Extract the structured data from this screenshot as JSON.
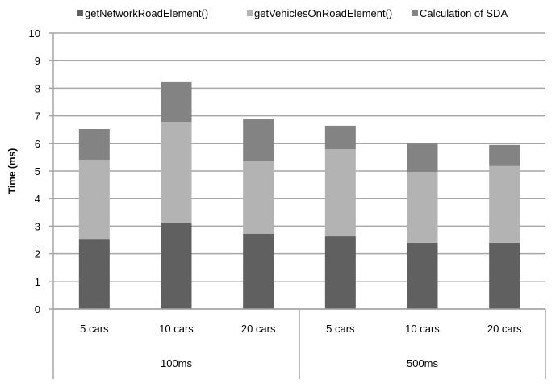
{
  "chart_data": {
    "type": "bar",
    "stacked": true,
    "title": "",
    "xlabel": "",
    "ylabel": "Time (ms)",
    "ylim": [
      0,
      10
    ],
    "yticks": [
      0,
      1,
      2,
      3,
      4,
      5,
      6,
      7,
      8,
      9,
      10
    ],
    "grid": true,
    "legend_position": "top",
    "categories": [
      "5 cars",
      "10 cars",
      "20 cars",
      "5 cars",
      "10 cars",
      "20 cars"
    ],
    "groups": [
      {
        "label": "100ms",
        "span": 3
      },
      {
        "label": "500ms",
        "span": 3
      }
    ],
    "series": [
      {
        "name": "getNetworkRoadElement()",
        "color": "#606060",
        "values": [
          2.54,
          3.1,
          2.72,
          2.63,
          2.4,
          2.4
        ]
      },
      {
        "name": "getVehiclesOnRoadElement()",
        "color": "#b3b3b3",
        "values": [
          2.87,
          3.68,
          2.63,
          3.16,
          2.57,
          2.78
        ]
      },
      {
        "name": "Calculation of SDA",
        "color": "#838383",
        "values": [
          1.11,
          1.44,
          1.52,
          0.85,
          1.05,
          0.76
        ]
      }
    ]
  }
}
